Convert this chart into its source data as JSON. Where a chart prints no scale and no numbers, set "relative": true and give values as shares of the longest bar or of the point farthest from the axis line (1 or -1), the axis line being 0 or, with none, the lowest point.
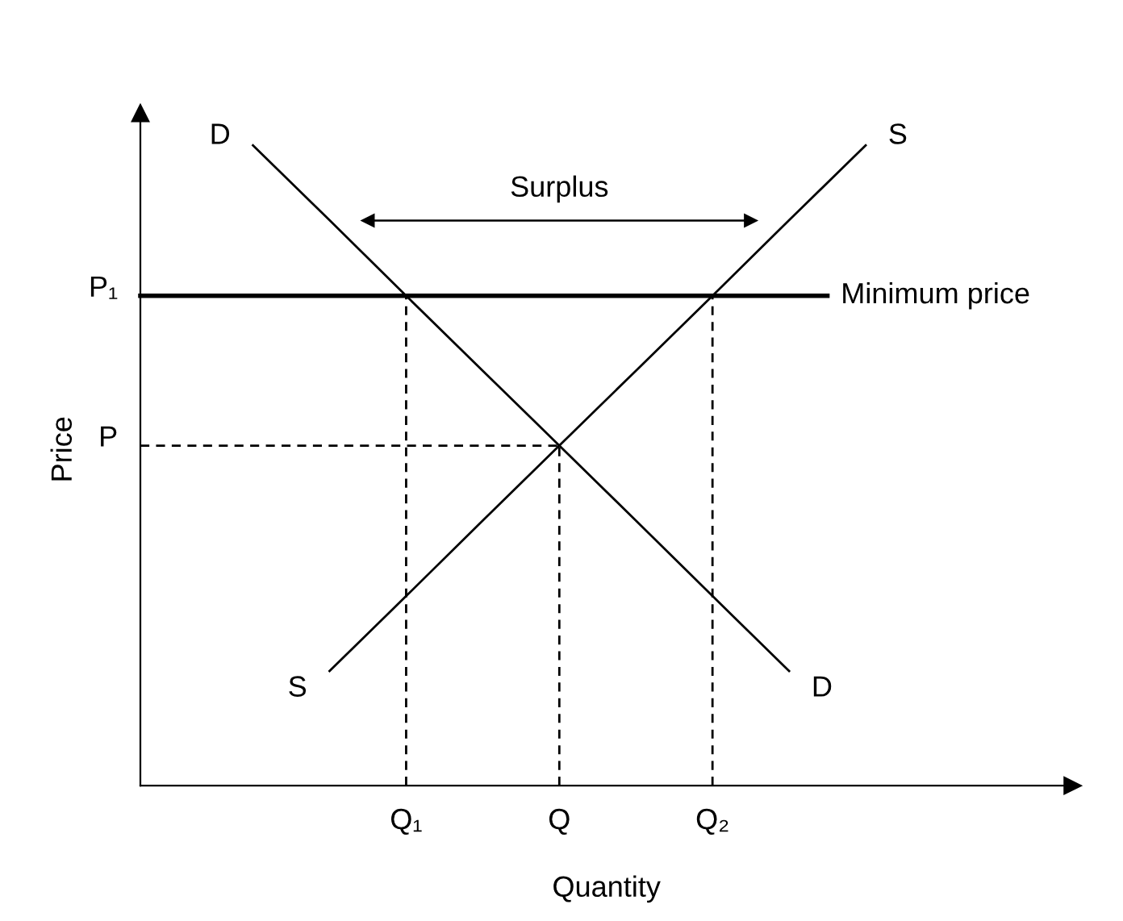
{
  "chart_data": {
    "type": "line",
    "relative": true,
    "xlabel": "Quantity",
    "ylabel": "Price",
    "categories": [
      null,
      null,
      "Q₁",
      null,
      "Q",
      null,
      "Q₂",
      null,
      null
    ],
    "series": [
      {
        "name": "D",
        "color": "#000000",
        "values": [
          1.0,
          0.883,
          0.765,
          0.648,
          0.531,
          0.414,
          0.296,
          0.179,
          null
        ]
      },
      {
        "name": "S",
        "color": "#000000",
        "values": [
          null,
          0.179,
          0.296,
          0.414,
          0.531,
          0.648,
          0.765,
          0.883,
          1.0
        ]
      }
    ],
    "ref_lines": [
      {
        "axis": "y",
        "value": 0.765,
        "label": "Minimum price",
        "color": "#000000",
        "line_style": "solid"
      },
      {
        "axis": "y",
        "value": 0.531,
        "label": "P",
        "color": "#000000",
        "line_style": "dashed"
      },
      {
        "axis": "x",
        "value": "Q₁",
        "label": null,
        "color": "#000000",
        "line_style": "dashed"
      },
      {
        "axis": "x",
        "value": "Q",
        "label": null,
        "color": "#000000",
        "line_style": "dashed"
      },
      {
        "axis": "x",
        "value": "Q₂",
        "label": null,
        "color": "#000000",
        "line_style": "dashed"
      }
    ],
    "annotations": [
      "P₁",
      "Surplus"
    ]
  }
}
